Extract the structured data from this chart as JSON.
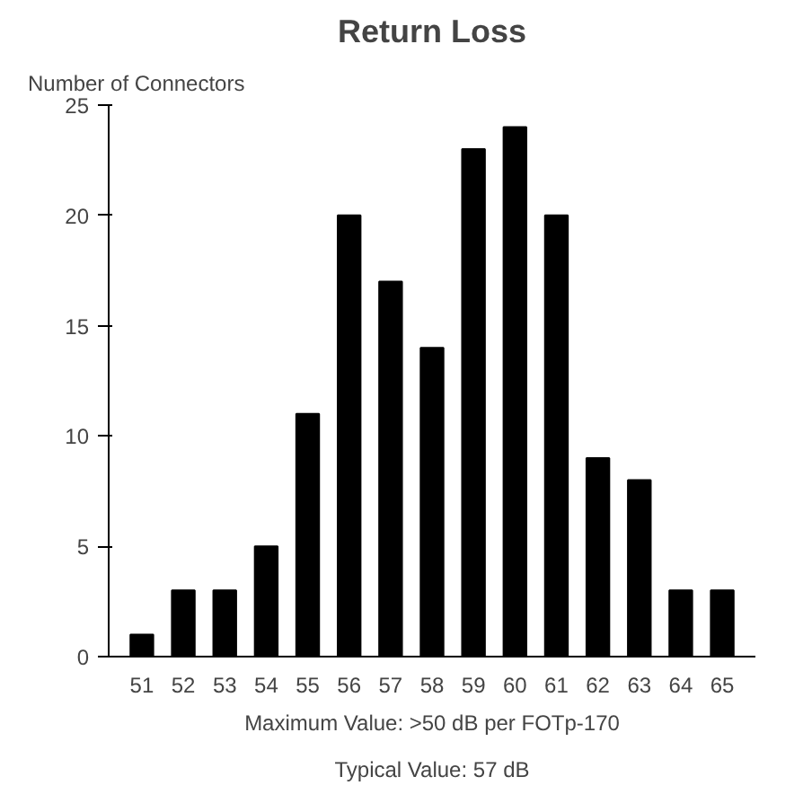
{
  "chart_data": {
    "type": "bar",
    "title": "Return Loss",
    "ylabel": "Number of Connectors",
    "categories": [
      "51",
      "52",
      "53",
      "54",
      "55",
      "56",
      "57",
      "58",
      "59",
      "60",
      "61",
      "62",
      "63",
      "64",
      "65"
    ],
    "values": [
      1,
      3,
      3,
      5,
      11,
      20,
      17,
      14,
      23,
      24,
      20,
      9,
      8,
      3,
      3
    ],
    "color": "#000000",
    "ylim": [
      0,
      25
    ],
    "yticks": [
      0,
      5,
      10,
      15,
      20,
      25
    ],
    "grid": false,
    "annotations": [
      "Maximum Value: >50 dB per FOTp-170",
      "Typical Value: 57 dB"
    ]
  }
}
